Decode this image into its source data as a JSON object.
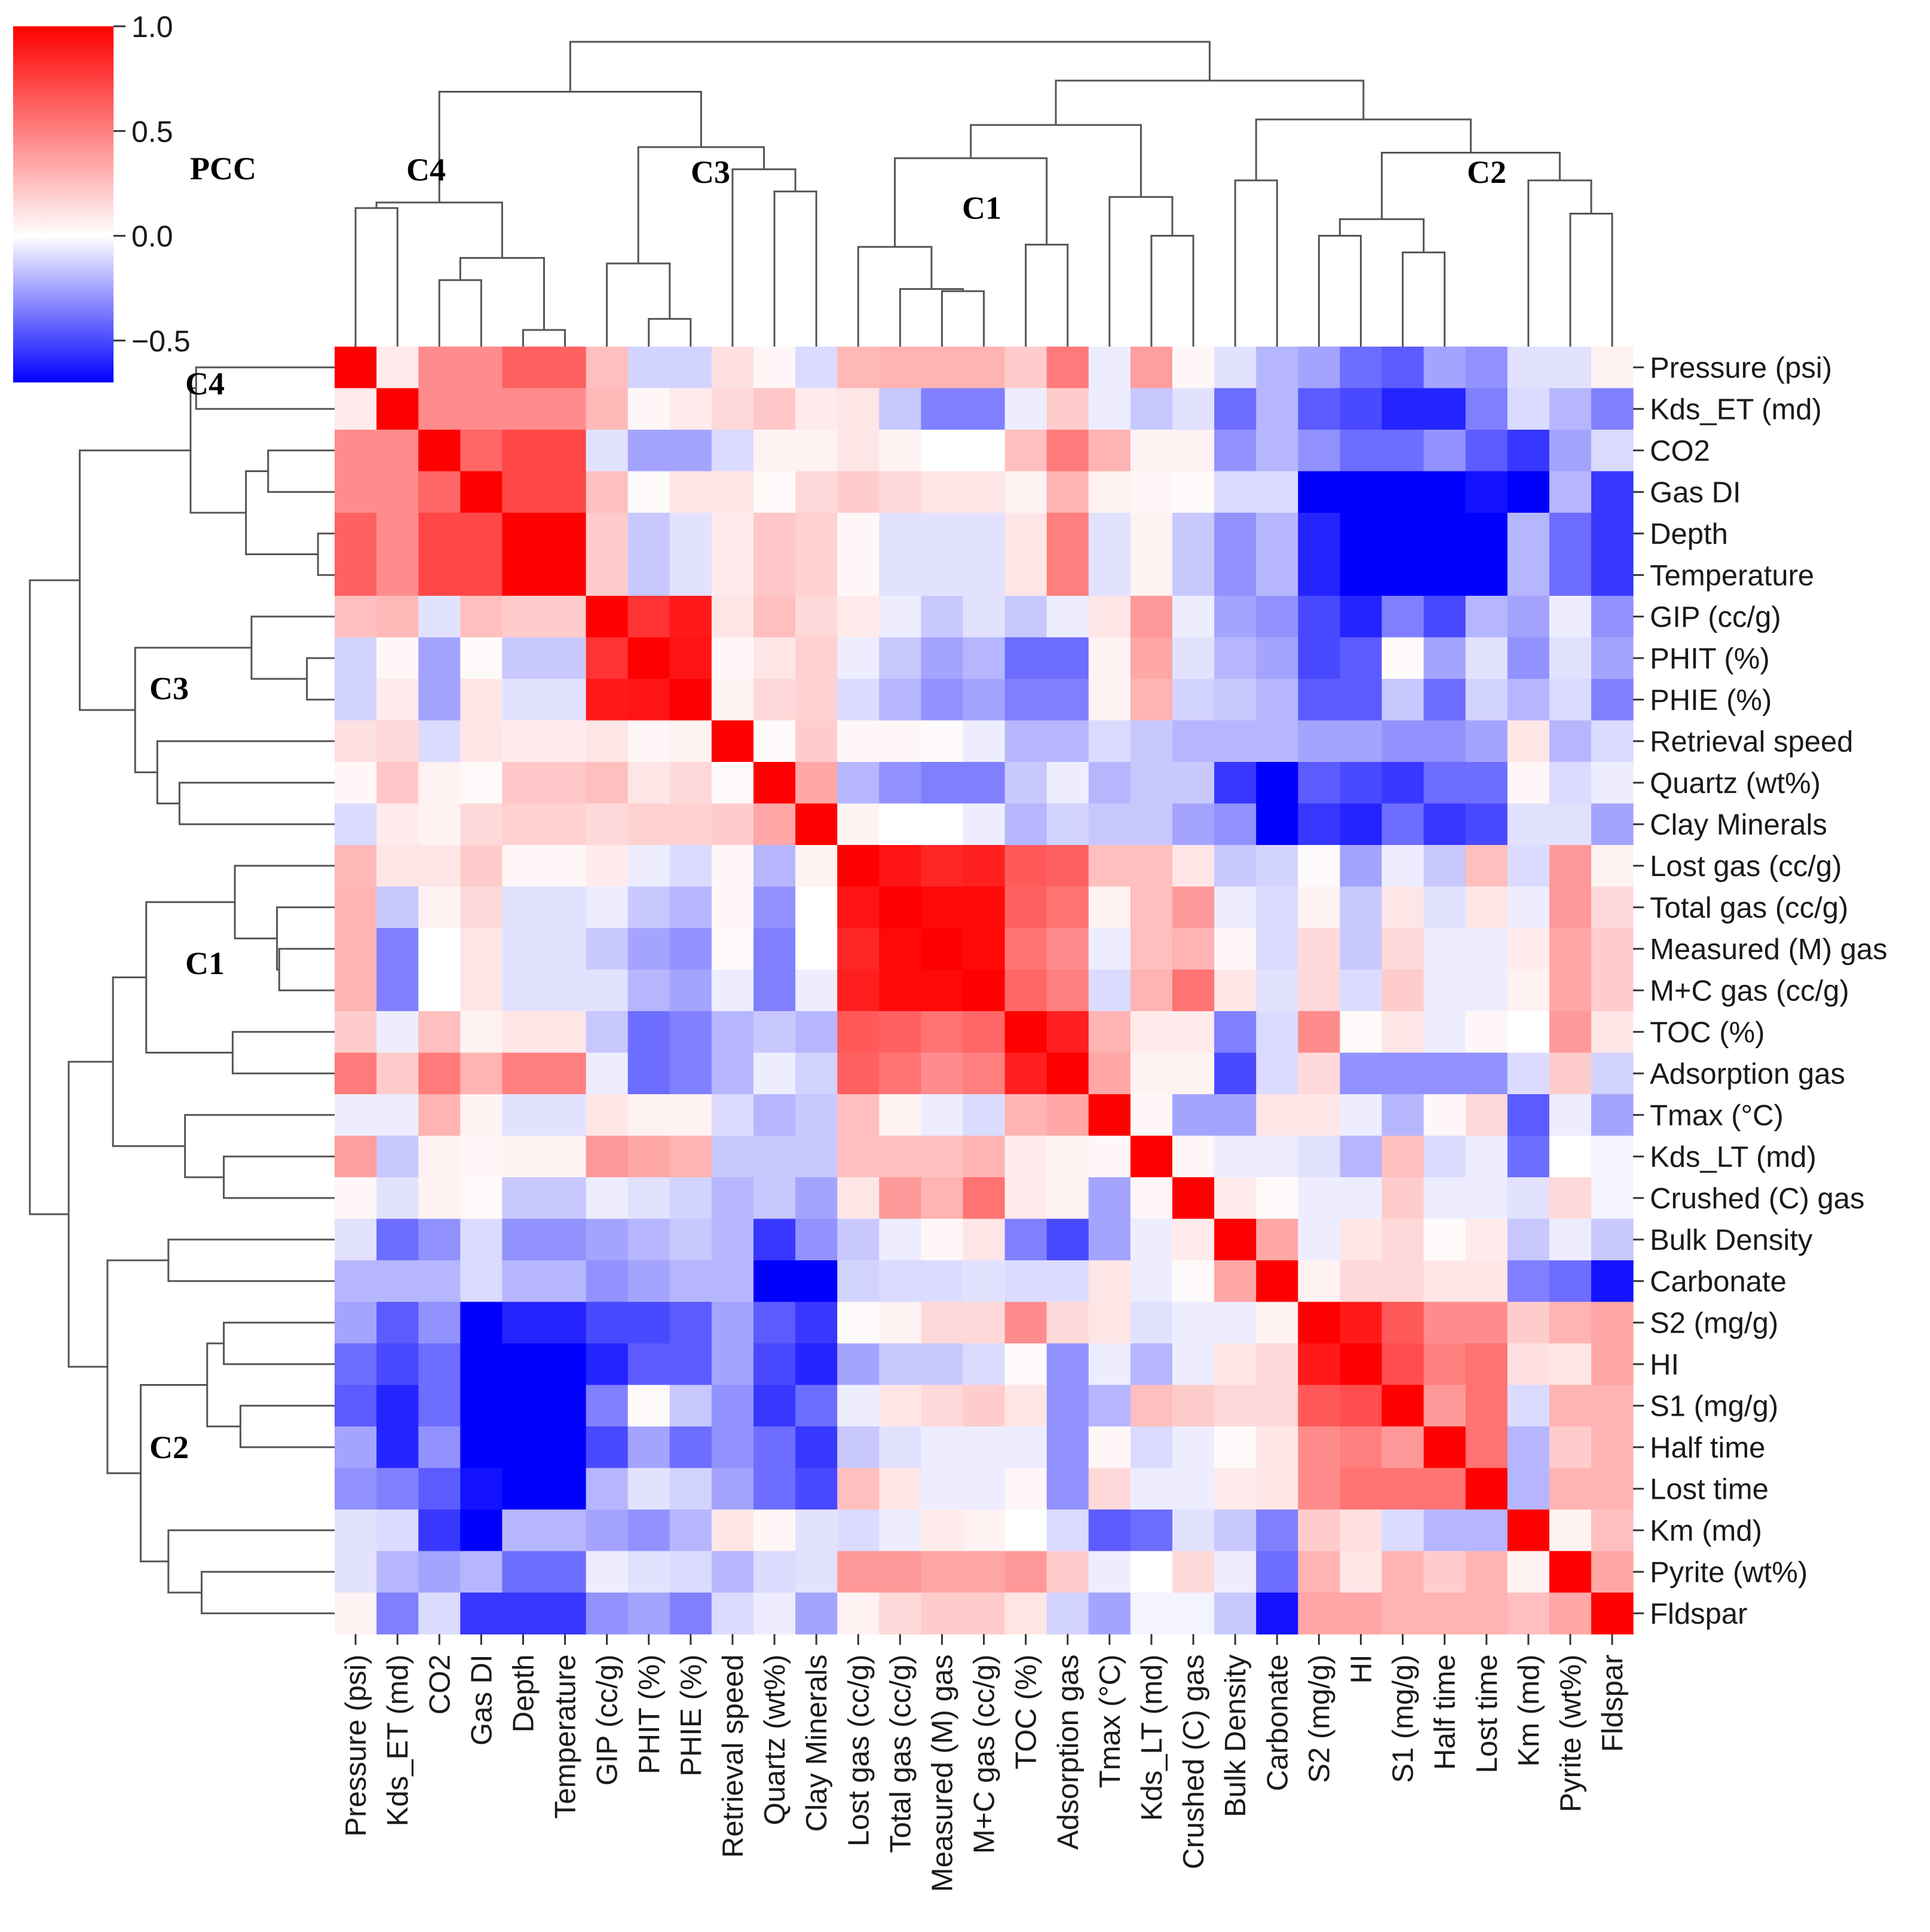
{
  "chart_data": {
    "type": "heatmap",
    "subtype": "clustermap",
    "variables": [
      "Pressure (psi)",
      "Kds_ET (md)",
      "CO2",
      "Gas DI",
      "Depth",
      "Temperature",
      "GIP (cc/g)",
      "PHIT (%)",
      "PHIE (%)",
      "Retrieval speed",
      "Quartz (wt%)",
      "Clay Minerals",
      "Lost gas (cc/g)",
      "Total gas (cc/g)",
      "Measured (M) gas",
      "M+C gas (cc/g)",
      "TOC (%)",
      "Adsorption gas",
      "Tmax (°C)",
      "Kds_LT (md)",
      "Crushed (C) gas",
      "Bulk Density",
      "Carbonate",
      "S2 (mg/g)",
      "HI",
      "S1 (mg/g)",
      "Half time",
      "Lost time",
      "Km (md)",
      "Pyrite (wt%)",
      "Fldspar"
    ],
    "values": [
      [
        1.0,
        0.08,
        0.45,
        0.45,
        0.62,
        0.62,
        0.25,
        -0.12,
        -0.12,
        0.12,
        0.03,
        -0.1,
        0.28,
        0.3,
        0.3,
        0.3,
        0.2,
        0.52,
        -0.05,
        0.38,
        0.03,
        -0.08,
        -0.2,
        -0.25,
        -0.4,
        -0.45,
        -0.25,
        -0.3,
        -0.08,
        -0.08,
        0.05
      ],
      [
        0.08,
        1.0,
        0.45,
        0.45,
        0.45,
        0.45,
        0.28,
        0.03,
        0.08,
        0.15,
        0.22,
        0.08,
        0.1,
        -0.15,
        -0.35,
        -0.35,
        -0.05,
        0.2,
        -0.05,
        -0.15,
        -0.08,
        -0.4,
        -0.2,
        -0.45,
        -0.5,
        -0.6,
        -0.6,
        -0.35,
        -0.1,
        -0.2,
        -0.35
      ],
      [
        0.45,
        0.45,
        1.0,
        0.6,
        0.72,
        0.72,
        -0.08,
        -0.25,
        -0.25,
        -0.1,
        0.05,
        0.05,
        0.1,
        0.05,
        0.0,
        0.0,
        0.25,
        0.52,
        0.3,
        0.05,
        0.05,
        -0.3,
        -0.2,
        -0.3,
        -0.4,
        -0.4,
        -0.3,
        -0.45,
        -0.55,
        -0.25,
        -0.1
      ],
      [
        0.45,
        0.45,
        0.6,
        1.0,
        0.72,
        0.72,
        0.25,
        0.02,
        0.1,
        0.1,
        0.02,
        0.15,
        0.2,
        0.15,
        0.1,
        0.1,
        0.05,
        0.3,
        0.05,
        0.03,
        0.02,
        -0.1,
        -0.1,
        -0.7,
        -0.9,
        -0.8,
        -0.8,
        -0.65,
        -0.7,
        -0.2,
        -0.55
      ],
      [
        0.62,
        0.45,
        0.72,
        0.72,
        1.0,
        1.0,
        0.2,
        -0.15,
        -0.08,
        0.08,
        0.22,
        0.18,
        0.03,
        -0.08,
        -0.08,
        -0.08,
        0.1,
        0.5,
        -0.08,
        0.05,
        -0.15,
        -0.3,
        -0.2,
        -0.6,
        -0.85,
        -0.8,
        -0.7,
        -0.85,
        -0.2,
        -0.4,
        -0.55
      ],
      [
        0.62,
        0.45,
        0.72,
        0.72,
        1.0,
        1.0,
        0.2,
        -0.15,
        -0.08,
        0.08,
        0.22,
        0.18,
        0.03,
        -0.08,
        -0.08,
        -0.08,
        0.1,
        0.5,
        -0.08,
        0.05,
        -0.15,
        -0.3,
        -0.2,
        -0.6,
        -0.85,
        -0.8,
        -0.7,
        -0.85,
        -0.2,
        -0.4,
        -0.55
      ],
      [
        0.25,
        0.28,
        -0.08,
        0.25,
        0.2,
        0.2,
        1.0,
        0.8,
        0.9,
        0.1,
        0.25,
        0.15,
        0.08,
        -0.05,
        -0.15,
        -0.08,
        -0.15,
        -0.05,
        0.1,
        0.4,
        -0.05,
        -0.25,
        -0.3,
        -0.5,
        -0.6,
        -0.35,
        -0.5,
        -0.2,
        -0.25,
        -0.05,
        -0.3
      ],
      [
        -0.12,
        0.03,
        -0.25,
        0.02,
        -0.15,
        -0.15,
        0.8,
        1.0,
        0.92,
        0.03,
        0.1,
        0.18,
        -0.05,
        -0.15,
        -0.25,
        -0.2,
        -0.4,
        -0.4,
        0.05,
        0.35,
        -0.08,
        -0.2,
        -0.25,
        -0.5,
        -0.45,
        0.02,
        -0.25,
        -0.08,
        -0.3,
        -0.08,
        -0.25
      ],
      [
        -0.12,
        0.08,
        -0.25,
        0.1,
        -0.08,
        -0.08,
        0.9,
        0.92,
        1.0,
        0.05,
        0.15,
        0.18,
        -0.1,
        -0.2,
        -0.3,
        -0.25,
        -0.35,
        -0.35,
        0.05,
        0.3,
        -0.12,
        -0.15,
        -0.2,
        -0.45,
        -0.45,
        -0.15,
        -0.4,
        -0.12,
        -0.2,
        -0.1,
        -0.35
      ],
      [
        0.12,
        0.15,
        -0.1,
        0.1,
        0.08,
        0.08,
        0.1,
        0.03,
        0.05,
        1.0,
        0.02,
        0.2,
        0.03,
        0.03,
        0.02,
        -0.05,
        -0.2,
        -0.2,
        -0.1,
        -0.15,
        -0.2,
        -0.2,
        -0.2,
        -0.25,
        -0.25,
        -0.3,
        -0.3,
        -0.25,
        0.1,
        -0.2,
        -0.1
      ],
      [
        0.03,
        0.22,
        0.05,
        0.02,
        0.22,
        0.22,
        0.25,
        0.1,
        0.15,
        0.02,
        1.0,
        0.35,
        -0.2,
        -0.3,
        -0.35,
        -0.35,
        -0.15,
        -0.05,
        -0.2,
        -0.15,
        -0.15,
        -0.55,
        -0.95,
        -0.45,
        -0.5,
        -0.55,
        -0.4,
        -0.4,
        0.03,
        -0.1,
        -0.05
      ],
      [
        -0.1,
        0.08,
        0.05,
        0.15,
        0.18,
        0.18,
        0.15,
        0.18,
        0.18,
        0.2,
        0.35,
        1.0,
        0.05,
        0.0,
        0.0,
        -0.05,
        -0.2,
        -0.12,
        -0.15,
        -0.15,
        -0.25,
        -0.3,
        -0.75,
        -0.55,
        -0.6,
        -0.4,
        -0.55,
        -0.5,
        -0.08,
        -0.08,
        -0.25
      ],
      [
        0.28,
        0.1,
        0.1,
        0.2,
        0.03,
        0.03,
        0.08,
        -0.05,
        -0.1,
        0.03,
        -0.2,
        0.05,
        1.0,
        0.92,
        0.85,
        0.88,
        0.65,
        0.62,
        0.25,
        0.25,
        0.1,
        -0.15,
        -0.12,
        0.02,
        -0.25,
        -0.05,
        -0.15,
        0.25,
        -0.1,
        0.4,
        0.05
      ],
      [
        0.3,
        -0.15,
        0.05,
        0.15,
        -0.08,
        -0.08,
        -0.05,
        -0.15,
        -0.2,
        0.03,
        -0.3,
        0.0,
        0.92,
        1.0,
        0.97,
        0.97,
        0.62,
        0.55,
        0.05,
        0.25,
        0.4,
        -0.05,
        -0.1,
        0.05,
        -0.15,
        0.1,
        -0.08,
        0.1,
        -0.05,
        0.4,
        0.15
      ],
      [
        0.3,
        -0.35,
        0.0,
        0.1,
        -0.08,
        -0.08,
        -0.15,
        -0.25,
        -0.3,
        0.02,
        -0.35,
        0.0,
        0.85,
        0.97,
        1.0,
        0.97,
        0.55,
        0.45,
        -0.05,
        0.25,
        0.3,
        0.03,
        -0.1,
        0.15,
        -0.15,
        0.15,
        -0.05,
        -0.05,
        0.08,
        0.35,
        0.2
      ],
      [
        0.3,
        -0.35,
        0.0,
        0.1,
        -0.08,
        -0.08,
        -0.08,
        -0.2,
        -0.25,
        -0.05,
        -0.35,
        -0.05,
        0.88,
        0.97,
        0.97,
        1.0,
        0.6,
        0.5,
        -0.1,
        0.3,
        0.55,
        0.1,
        -0.08,
        0.15,
        -0.1,
        0.2,
        -0.05,
        -0.05,
        0.05,
        0.35,
        0.2
      ],
      [
        0.2,
        -0.05,
        0.25,
        0.05,
        0.1,
        0.1,
        -0.15,
        -0.4,
        -0.35,
        -0.2,
        -0.15,
        -0.2,
        0.65,
        0.62,
        0.55,
        0.6,
        1.0,
        0.88,
        0.3,
        0.08,
        0.08,
        -0.35,
        -0.1,
        0.45,
        0.02,
        0.1,
        -0.05,
        0.03,
        0.0,
        0.4,
        0.1
      ],
      [
        0.52,
        0.2,
        0.52,
        0.3,
        0.5,
        0.5,
        -0.05,
        -0.4,
        -0.35,
        -0.2,
        -0.05,
        -0.12,
        0.62,
        0.55,
        0.45,
        0.5,
        0.88,
        1.0,
        0.35,
        0.05,
        0.05,
        -0.5,
        -0.1,
        0.15,
        -0.3,
        -0.3,
        -0.3,
        -0.3,
        -0.1,
        0.2,
        -0.12
      ],
      [
        -0.05,
        -0.05,
        0.3,
        0.05,
        -0.08,
        -0.08,
        0.1,
        0.05,
        0.05,
        -0.1,
        -0.2,
        -0.15,
        0.25,
        0.05,
        -0.05,
        -0.1,
        0.3,
        0.35,
        1.0,
        0.03,
        -0.25,
        -0.25,
        0.1,
        0.1,
        -0.05,
        -0.2,
        0.03,
        0.15,
        -0.45,
        -0.05,
        -0.25
      ],
      [
        0.38,
        -0.15,
        0.05,
        0.03,
        0.05,
        0.05,
        0.4,
        0.35,
        0.3,
        -0.15,
        -0.15,
        -0.15,
        0.25,
        0.25,
        0.25,
        0.3,
        0.08,
        0.05,
        0.03,
        1.0,
        0.03,
        -0.05,
        -0.05,
        -0.08,
        -0.2,
        0.25,
        -0.1,
        -0.05,
        -0.4,
        0.0,
        -0.03
      ],
      [
        0.03,
        -0.08,
        0.05,
        0.02,
        -0.15,
        -0.15,
        -0.05,
        -0.08,
        -0.12,
        -0.2,
        -0.15,
        -0.25,
        0.1,
        0.4,
        0.3,
        0.55,
        0.08,
        0.05,
        -0.25,
        0.03,
        1.0,
        0.08,
        0.02,
        -0.05,
        -0.05,
        0.2,
        -0.05,
        -0.05,
        -0.08,
        0.15,
        -0.03
      ],
      [
        -0.08,
        -0.4,
        -0.3,
        -0.1,
        -0.3,
        -0.3,
        -0.25,
        -0.2,
        -0.15,
        -0.2,
        -0.55,
        -0.3,
        -0.15,
        -0.05,
        0.03,
        0.1,
        -0.35,
        -0.5,
        -0.25,
        -0.05,
        0.08,
        1.0,
        0.35,
        -0.05,
        0.1,
        0.15,
        0.02,
        0.08,
        -0.15,
        -0.05,
        -0.15
      ],
      [
        -0.2,
        -0.2,
        -0.2,
        -0.1,
        -0.2,
        -0.2,
        -0.3,
        -0.25,
        -0.2,
        -0.2,
        -0.95,
        -0.75,
        -0.12,
        -0.1,
        -0.1,
        -0.08,
        -0.1,
        -0.1,
        0.1,
        -0.05,
        0.02,
        0.35,
        1.0,
        0.05,
        0.15,
        0.15,
        0.1,
        0.1,
        -0.35,
        -0.4,
        -0.65
      ],
      [
        -0.25,
        -0.45,
        -0.3,
        -0.7,
        -0.6,
        -0.6,
        -0.5,
        -0.5,
        -0.45,
        -0.25,
        -0.45,
        -0.55,
        0.02,
        0.05,
        0.15,
        0.15,
        0.45,
        0.15,
        0.1,
        -0.08,
        -0.05,
        -0.05,
        0.05,
        1.0,
        0.9,
        0.65,
        0.45,
        0.45,
        0.2,
        0.3,
        0.35
      ],
      [
        -0.4,
        -0.5,
        -0.4,
        -0.9,
        -0.85,
        -0.85,
        -0.6,
        -0.45,
        -0.45,
        -0.25,
        -0.5,
        -0.6,
        -0.25,
        -0.15,
        -0.15,
        -0.1,
        0.02,
        -0.3,
        -0.05,
        -0.2,
        -0.05,
        0.1,
        0.15,
        0.9,
        1.0,
        0.7,
        0.5,
        0.55,
        0.12,
        0.1,
        0.35
      ],
      [
        -0.45,
        -0.6,
        -0.4,
        -0.8,
        -0.8,
        -0.8,
        -0.35,
        0.02,
        -0.15,
        -0.3,
        -0.55,
        -0.4,
        -0.05,
        0.1,
        0.15,
        0.2,
        0.1,
        -0.3,
        -0.2,
        0.25,
        0.2,
        0.15,
        0.15,
        0.65,
        0.7,
        1.0,
        0.4,
        0.55,
        -0.1,
        0.3,
        0.3
      ],
      [
        -0.25,
        -0.6,
        -0.3,
        -0.8,
        -0.7,
        -0.7,
        -0.5,
        -0.25,
        -0.4,
        -0.3,
        -0.4,
        -0.55,
        -0.15,
        -0.08,
        -0.05,
        -0.05,
        -0.05,
        -0.3,
        0.03,
        -0.1,
        -0.05,
        0.02,
        0.1,
        0.45,
        0.5,
        0.4,
        1.0,
        0.55,
        -0.2,
        0.2,
        0.3
      ],
      [
        -0.3,
        -0.35,
        -0.45,
        -0.65,
        -0.85,
        -0.85,
        -0.2,
        -0.08,
        -0.12,
        -0.25,
        -0.4,
        -0.5,
        0.25,
        0.1,
        -0.05,
        -0.05,
        0.03,
        -0.3,
        0.15,
        -0.05,
        -0.05,
        0.08,
        0.1,
        0.45,
        0.55,
        0.55,
        0.55,
        1.0,
        -0.2,
        0.3,
        0.3
      ],
      [
        -0.08,
        -0.1,
        -0.55,
        -0.7,
        -0.2,
        -0.2,
        -0.25,
        -0.3,
        -0.2,
        0.1,
        0.03,
        -0.08,
        -0.1,
        -0.05,
        0.08,
        0.05,
        0.0,
        -0.1,
        -0.45,
        -0.4,
        -0.08,
        -0.15,
        -0.35,
        0.2,
        0.12,
        -0.1,
        -0.2,
        -0.2,
        1.0,
        0.05,
        0.25
      ],
      [
        -0.08,
        -0.2,
        -0.25,
        -0.2,
        -0.4,
        -0.4,
        -0.05,
        -0.08,
        -0.1,
        -0.2,
        -0.1,
        -0.08,
        0.4,
        0.4,
        0.35,
        0.35,
        0.4,
        0.2,
        -0.05,
        0.0,
        0.15,
        -0.05,
        -0.4,
        0.3,
        0.1,
        0.3,
        0.2,
        0.3,
        0.05,
        1.0,
        0.35
      ],
      [
        0.05,
        -0.35,
        -0.1,
        -0.55,
        -0.55,
        -0.55,
        -0.3,
        -0.25,
        -0.35,
        -0.1,
        -0.05,
        -0.25,
        0.05,
        0.15,
        0.2,
        0.2,
        0.1,
        -0.12,
        -0.25,
        -0.03,
        -0.03,
        -0.15,
        -0.65,
        0.35,
        0.35,
        0.3,
        0.3,
        0.3,
        0.25,
        0.35,
        1.0
      ]
    ],
    "colorbar": {
      "label": "PCC",
      "cmap": "bwr",
      "vmin": -0.7,
      "vmax": 1.0,
      "ticks": [
        1.0,
        0.5,
        0.0,
        -0.5
      ],
      "tick_labels": [
        "1.0",
        "0.5",
        "0.0",
        "−0.5"
      ]
    },
    "clusters": [
      {
        "label": "C4",
        "members": [
          "Pressure (psi)",
          "Kds_ET (md)",
          "CO2",
          "Gas DI",
          "Depth",
          "Temperature"
        ]
      },
      {
        "label": "C3",
        "members": [
          "GIP (cc/g)",
          "PHIT (%)",
          "PHIE (%)",
          "Retrieval speed",
          "Quartz (wt%)",
          "Clay Minerals"
        ]
      },
      {
        "label": "C1",
        "members": [
          "Lost gas (cc/g)",
          "Total gas (cc/g)",
          "Measured (M) gas",
          "M+C gas (cc/g)",
          "TOC (%)",
          "Adsorption gas",
          "Tmax (°C)",
          "Kds_LT (md)",
          "Crushed (C) gas"
        ]
      },
      {
        "label": "C2",
        "members": [
          "Bulk Density",
          "Carbonate",
          "S2 (mg/g)",
          "HI",
          "S1 (mg/g)",
          "Half time",
          "Lost time",
          "Km (md)",
          "Pyrite (wt%)",
          "Fldspar"
        ]
      }
    ],
    "dendrogram": {
      "merges": [
        [
          4,
          5,
          0.15
        ],
        [
          7,
          8,
          0.25
        ],
        [
          14,
          15,
          0.5
        ],
        [
          13,
          14,
          0.52
        ],
        [
          2,
          3,
          0.6
        ],
        [
          6,
          7,
          0.75
        ],
        [
          2,
          4,
          0.8
        ],
        [
          12,
          13,
          0.9
        ],
        [
          16,
          17,
          0.92
        ],
        [
          25,
          26,
          0.85
        ],
        [
          23,
          24,
          1.0
        ],
        [
          19,
          20,
          1.0
        ],
        [
          29,
          30,
          1.2
        ],
        [
          0,
          1,
          1.25
        ],
        [
          23,
          25,
          1.15
        ],
        [
          0,
          2,
          1.3
        ],
        [
          18,
          19,
          1.35
        ],
        [
          10,
          11,
          1.4
        ],
        [
          28,
          29,
          1.5
        ],
        [
          21,
          22,
          1.5
        ],
        [
          9,
          10,
          1.6
        ],
        [
          12,
          16,
          1.7
        ],
        [
          23,
          28,
          1.75
        ],
        [
          6,
          9,
          1.8
        ],
        [
          21,
          23,
          2.05
        ],
        [
          12,
          18,
          2.0
        ],
        [
          0,
          6,
          2.3
        ],
        [
          12,
          21,
          2.4
        ],
        [
          0,
          12,
          2.75
        ]
      ]
    }
  }
}
